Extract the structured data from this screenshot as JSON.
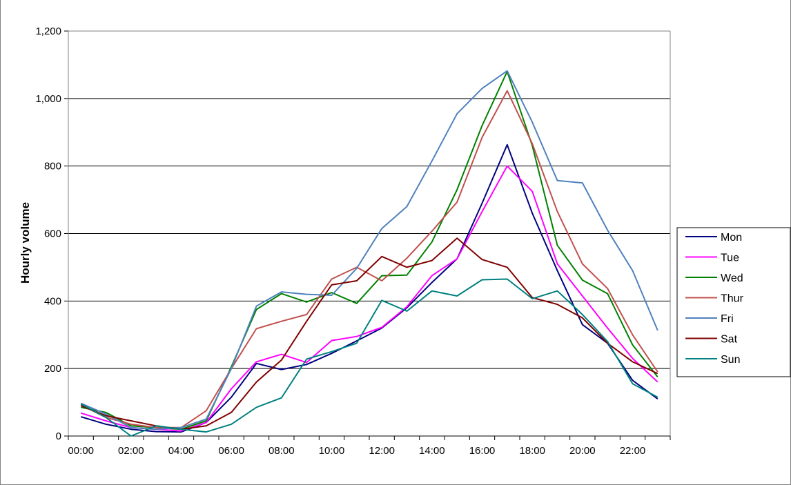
{
  "chart_data": {
    "type": "line",
    "title": "",
    "xlabel": "",
    "ylabel": "Hourly volume",
    "ylim": [
      0,
      1200
    ],
    "yticks": [
      "0",
      "200",
      "400",
      "600",
      "800",
      "1,000",
      "1,200"
    ],
    "x": [
      "00:00",
      "01:00",
      "02:00",
      "03:00",
      "04:00",
      "05:00",
      "06:00",
      "07:00",
      "08:00",
      "09:00",
      "10:00",
      "11:00",
      "12:00",
      "13:00",
      "14:00",
      "15:00",
      "16:00",
      "17:00",
      "18:00",
      "19:00",
      "20:00",
      "21:00",
      "22:00",
      "23:00"
    ],
    "xtick_labels": [
      "00:00",
      "02:00",
      "04:00",
      "06:00",
      "08:00",
      "10:00",
      "12:00",
      "14:00",
      "16:00",
      "18:00",
      "20:00",
      "22:00"
    ],
    "grid": "horizontal",
    "legend_position": "right",
    "series": [
      {
        "name": "Mon",
        "color": "#000080",
        "values": [
          57,
          35,
          20,
          13,
          12,
          40,
          115,
          215,
          197,
          212,
          245,
          282,
          320,
          380,
          455,
          525,
          690,
          863,
          660,
          490,
          330,
          275,
          165,
          110
        ]
      },
      {
        "name": "Tue",
        "color": "#ff00ff",
        "values": [
          68,
          45,
          25,
          20,
          15,
          40,
          140,
          220,
          242,
          218,
          283,
          295,
          322,
          383,
          475,
          525,
          665,
          800,
          725,
          510,
          415,
          320,
          230,
          160
        ]
      },
      {
        "name": "Wed",
        "color": "#008000",
        "values": [
          85,
          70,
          30,
          25,
          20,
          45,
          205,
          375,
          422,
          397,
          425,
          393,
          475,
          477,
          575,
          730,
          920,
          1080,
          860,
          565,
          462,
          422,
          270,
          175
        ]
      },
      {
        "name": "Thur",
        "color": "#c0504d",
        "values": [
          92,
          55,
          35,
          25,
          25,
          75,
          200,
          318,
          340,
          360,
          465,
          500,
          460,
          527,
          607,
          693,
          885,
          1023,
          866,
          665,
          510,
          437,
          300,
          190
        ]
      },
      {
        "name": "Fri",
        "color": "#4f81bd",
        "values": [
          97,
          65,
          25,
          20,
          25,
          50,
          200,
          385,
          427,
          420,
          417,
          497,
          615,
          680,
          815,
          955,
          1030,
          1082,
          930,
          757,
          750,
          610,
          490,
          313
        ]
      },
      {
        "name": "Sat",
        "color": "#800000",
        "values": [
          90,
          60,
          45,
          30,
          20,
          30,
          70,
          160,
          225,
          340,
          448,
          460,
          532,
          500,
          520,
          586,
          523,
          500,
          410,
          390,
          350,
          275,
          220,
          185
        ]
      },
      {
        "name": "Sun",
        "color": "#008080",
        "values": [
          95,
          55,
          0,
          30,
          20,
          12,
          35,
          85,
          113,
          228,
          250,
          275,
          402,
          370,
          430,
          415,
          463,
          465,
          407,
          430,
          360,
          280,
          155,
          115
        ]
      }
    ]
  }
}
